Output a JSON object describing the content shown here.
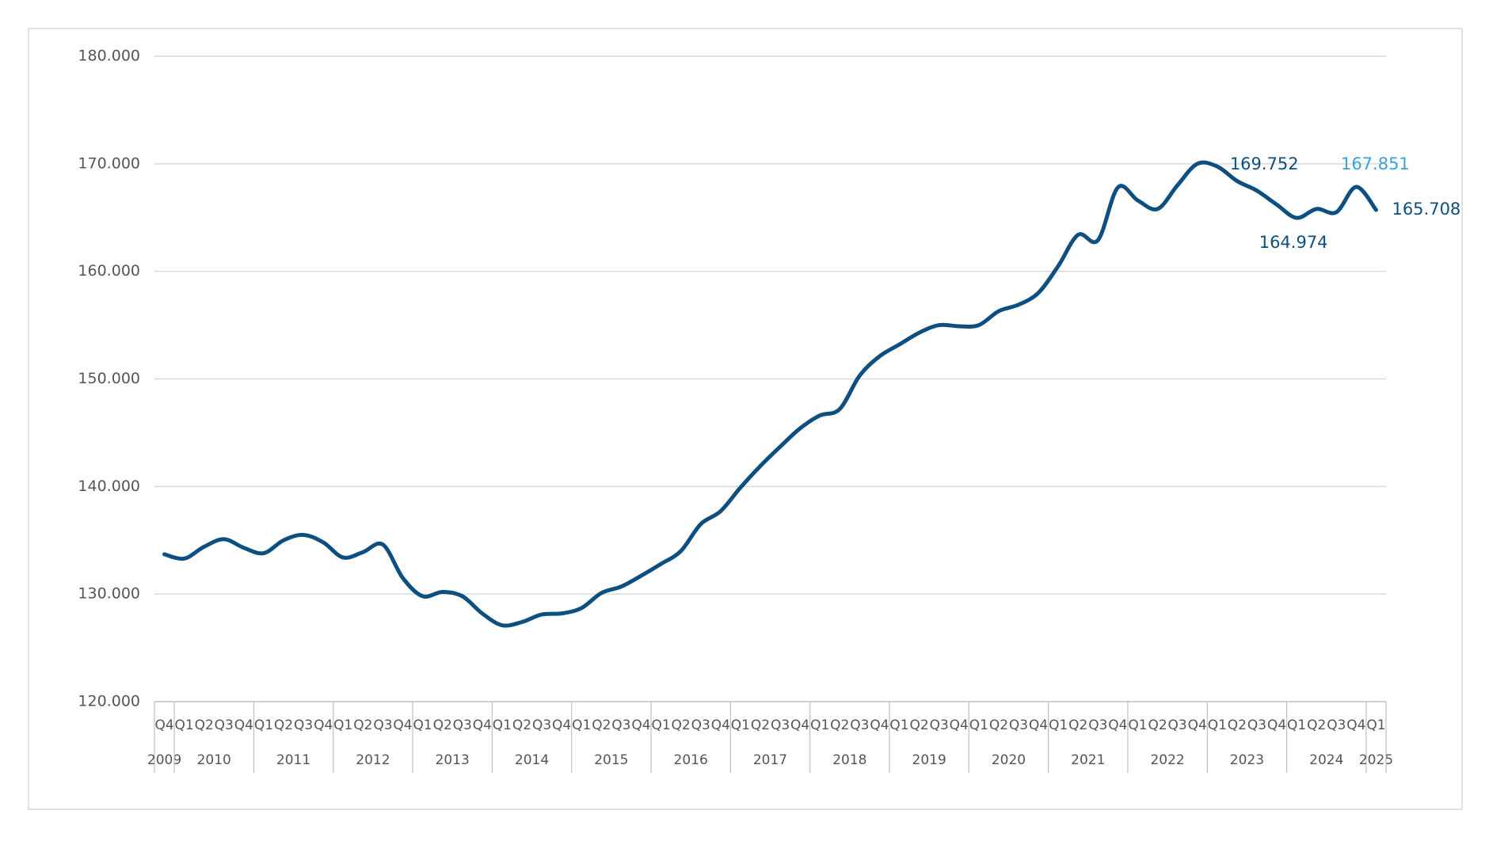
{
  "chart_data": {
    "type": "line",
    "years": [
      {
        "year": "2009",
        "quarters": [
          "Q4"
        ]
      },
      {
        "year": "2010",
        "quarters": [
          "Q1",
          "Q2",
          "Q3",
          "Q4"
        ]
      },
      {
        "year": "2011",
        "quarters": [
          "Q1",
          "Q2",
          "Q3",
          "Q4"
        ]
      },
      {
        "year": "2012",
        "quarters": [
          "Q1",
          "Q2",
          "Q3",
          "Q4"
        ]
      },
      {
        "year": "2013",
        "quarters": [
          "Q1",
          "Q2",
          "Q3",
          "Q4"
        ]
      },
      {
        "year": "2014",
        "quarters": [
          "Q1",
          "Q2",
          "Q3",
          "Q4"
        ]
      },
      {
        "year": "2015",
        "quarters": [
          "Q1",
          "Q2",
          "Q3",
          "Q4"
        ]
      },
      {
        "year": "2016",
        "quarters": [
          "Q1",
          "Q2",
          "Q3",
          "Q4"
        ]
      },
      {
        "year": "2017",
        "quarters": [
          "Q1",
          "Q2",
          "Q3",
          "Q4"
        ]
      },
      {
        "year": "2018",
        "quarters": [
          "Q1",
          "Q2",
          "Q3",
          "Q4"
        ]
      },
      {
        "year": "2019",
        "quarters": [
          "Q1",
          "Q2",
          "Q3",
          "Q4"
        ]
      },
      {
        "year": "2020",
        "quarters": [
          "Q1",
          "Q2",
          "Q3",
          "Q4"
        ]
      },
      {
        "year": "2021",
        "quarters": [
          "Q1",
          "Q2",
          "Q3",
          "Q4"
        ]
      },
      {
        "year": "2022",
        "quarters": [
          "Q1",
          "Q2",
          "Q3",
          "Q4"
        ]
      },
      {
        "year": "2023",
        "quarters": [
          "Q1",
          "Q2",
          "Q3",
          "Q4"
        ]
      },
      {
        "year": "2024",
        "quarters": [
          "Q1",
          "Q2",
          "Q3",
          "Q4"
        ]
      },
      {
        "year": "2025",
        "quarters": [
          "Q1"
        ]
      }
    ],
    "color": "#0d4f80",
    "values": [
      133.7,
      133.3,
      134.4,
      135.1,
      134.3,
      133.8,
      135.0,
      135.5,
      134.8,
      133.4,
      133.9,
      134.6,
      131.5,
      129.8,
      130.2,
      129.8,
      128.2,
      127.1,
      127.4,
      128.1,
      128.2,
      128.7,
      130.1,
      130.7,
      131.7,
      132.8,
      134.0,
      136.5,
      137.7,
      139.9,
      141.9,
      143.7,
      145.4,
      146.6,
      147.2,
      150.3,
      152.1,
      153.2,
      154.3,
      155.0,
      154.9,
      155.0,
      156.3,
      156.9,
      158.0,
      160.5,
      163.4,
      162.9,
      167.8,
      166.6,
      165.8,
      168.0,
      170.0,
      169.752,
      168.4,
      167.5,
      166.2,
      164.974,
      165.8,
      165.5,
      167.851,
      165.708
    ],
    "value_labels": [
      null,
      null,
      null,
      null,
      null,
      null,
      null,
      null,
      null,
      null,
      null,
      null,
      null,
      null,
      null,
      null,
      null,
      null,
      null,
      null,
      null,
      null,
      null,
      null,
      null,
      null,
      null,
      null,
      null,
      null,
      null,
      null,
      null,
      null,
      null,
      null,
      null,
      null,
      null,
      null,
      null,
      null,
      null,
      null,
      null,
      null,
      null,
      null,
      null,
      null,
      null,
      null,
      null,
      "169.752",
      null,
      null,
      null,
      "164.974",
      null,
      null,
      "167.851",
      "165.708"
    ],
    "value_label_colors": [
      null,
      null,
      null,
      null,
      null,
      null,
      null,
      null,
      null,
      null,
      null,
      null,
      null,
      null,
      null,
      null,
      null,
      null,
      null,
      null,
      null,
      null,
      null,
      null,
      null,
      null,
      null,
      null,
      null,
      null,
      null,
      null,
      null,
      null,
      null,
      null,
      null,
      null,
      null,
      null,
      null,
      null,
      null,
      null,
      null,
      null,
      null,
      null,
      null,
      null,
      null,
      null,
      null,
      "#0d4f80",
      null,
      null,
      null,
      "#0d4f80",
      null,
      null,
      "#3aa0d8",
      "#0d4f80"
    ],
    "ylim": [
      120,
      180
    ],
    "yticks": [
      {
        "value": 120,
        "label": "120.000"
      },
      {
        "value": 130,
        "label": "130.000"
      },
      {
        "value": 140,
        "label": "140.000"
      },
      {
        "value": 150,
        "label": "150.000"
      },
      {
        "value": 160,
        "label": "160.000"
      },
      {
        "value": 170,
        "label": "170.000"
      },
      {
        "value": 180,
        "label": "180.000"
      }
    ],
    "grid": true
  }
}
